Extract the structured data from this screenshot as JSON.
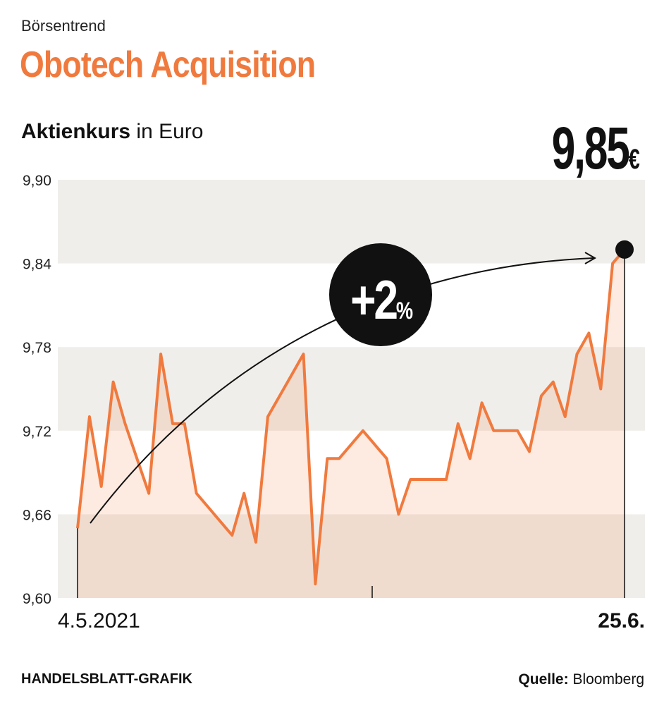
{
  "header": {
    "kicker": "Börsentrend",
    "title": "Obotech Acquisition",
    "subtitle_bold": "Aktienkurs",
    "subtitle_rest": " in Euro",
    "last_value": "9,85",
    "currency": "€"
  },
  "badge": {
    "text": "+2",
    "suffix": "%"
  },
  "footer": {
    "credit": "HANDELSBLATT-GRAFIK",
    "source_label": "Quelle:",
    "source_name": " Bloomberg"
  },
  "colors": {
    "accent": "#f07a3e",
    "band": "#f0eeeb",
    "fill": "#f07a3e",
    "text": "#111111"
  },
  "chart_data": {
    "type": "area",
    "title": "Aktienkurs in Euro",
    "ylim": [
      9.6,
      9.9
    ],
    "yticks": [
      "9,60",
      "9,66",
      "9,72",
      "9,78",
      "9,84",
      "9,90"
    ],
    "xtick_labels": {
      "start": "4.5.2021",
      "end": "25.6."
    },
    "series": [
      {
        "values": [
          9.65,
          9.73,
          9.68,
          9.755,
          9.725,
          9.7,
          9.675,
          9.775,
          9.725,
          9.725,
          9.675,
          9.665,
          9.655,
          9.645,
          9.675,
          9.64,
          9.73,
          9.745,
          9.76,
          9.775,
          9.61,
          9.7,
          9.7,
          9.71,
          9.72,
          9.71,
          9.7,
          9.66,
          9.685,
          9.685,
          9.685,
          9.685,
          9.725,
          9.7,
          9.74,
          9.72,
          9.72,
          9.72,
          9.705,
          9.745,
          9.755,
          9.73,
          9.775,
          9.79,
          9.75,
          9.84,
          9.85
        ]
      }
    ],
    "grid": "alternating horizontal bands"
  }
}
